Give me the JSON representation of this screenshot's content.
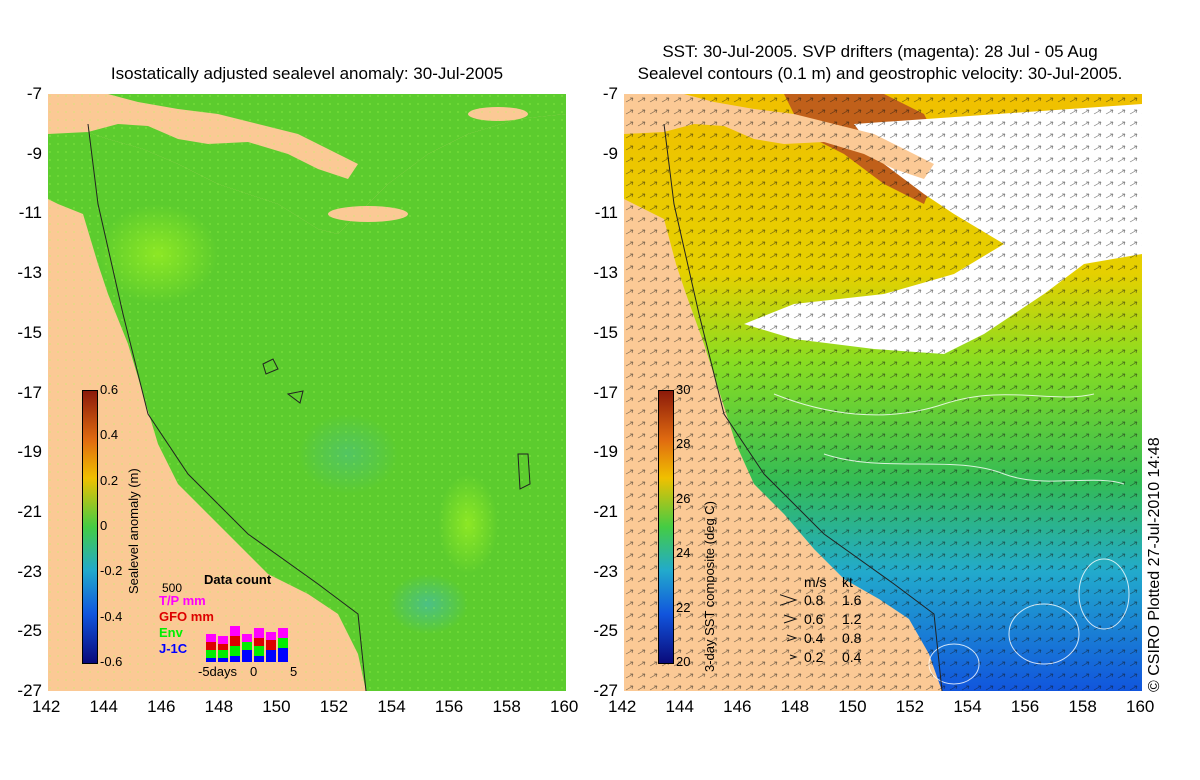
{
  "left_panel": {
    "title": "Isostatically adjusted sealevel anomaly: 30-Jul-2005",
    "colorbar": {
      "title": "Sealevel anomaly (m)",
      "ticks": [
        "0.6",
        "0.4",
        "0.2",
        "0",
        "-0.2",
        "-0.4",
        "-0.6"
      ],
      "colors": [
        "#8b1a0a",
        "#e06b10",
        "#f0c000",
        "#44cc44",
        "#22aacc",
        "#1155dd",
        "#0a0a7a"
      ]
    },
    "data_count": {
      "title": "Data count",
      "scale_label": "500",
      "missions": [
        {
          "label": "T/P mm",
          "color": "#ff00ff"
        },
        {
          "label": "GFO mm",
          "color": "#dd0000"
        },
        {
          "label": "Env",
          "color": "#00ee00"
        },
        {
          "label": "J-1C",
          "color": "#0000ff"
        }
      ],
      "axis": [
        "-5days",
        "0",
        "5"
      ]
    }
  },
  "right_panel": {
    "title_line1": "SST: 30-Jul-2005. SVP drifters (magenta): 28 Jul - 05 Aug",
    "title_line2": "Sealevel contours (0.1 m) and geostrophic velocity: 30-Jul-2005.",
    "colorbar": {
      "title": "3-day SST composite (deg C)",
      "ticks": [
        "30",
        "28",
        "26",
        "24",
        "22",
        "20"
      ],
      "colors": [
        "#8b1a0a",
        "#e06b10",
        "#f0c000",
        "#44cc44",
        "#22aacc",
        "#1155dd",
        "#0a0a7a"
      ]
    },
    "velocity_legend": {
      "header_ms": "m/s",
      "header_kt": "kt",
      "rows": [
        {
          "ms": "0.8",
          "kt": "1.6"
        },
        {
          "ms": "0.6",
          "kt": "1.2"
        },
        {
          "ms": "0.4",
          "kt": "0.8"
        },
        {
          "ms": "0.2",
          "kt": "0.4"
        }
      ]
    }
  },
  "axes": {
    "lat_ticks": [
      "-7",
      "-9",
      "-11",
      "-13",
      "-15",
      "-17",
      "-19",
      "-21",
      "-23",
      "-25",
      "-27"
    ],
    "lon_ticks": [
      "142",
      "144",
      "146",
      "148",
      "150",
      "152",
      "154",
      "156",
      "158",
      "160"
    ]
  },
  "colors": {
    "land": "#fbc995",
    "ocean_green": "#55cc33",
    "cloud": "#ffffff"
  },
  "copyright": "© CSIRO Plotted 27-Jul-2010 14:48"
}
